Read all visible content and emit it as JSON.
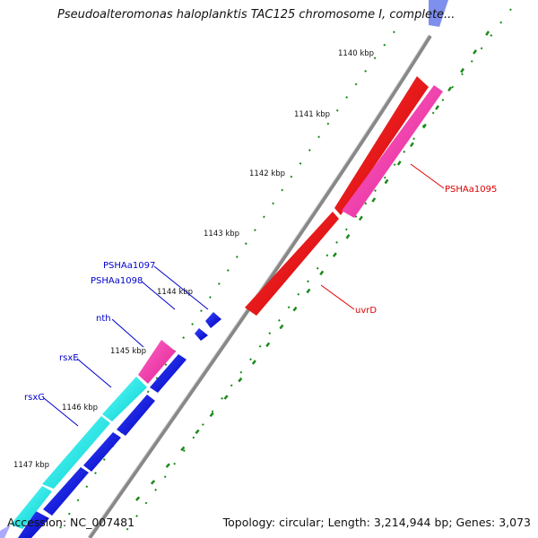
{
  "header": {
    "title": "Pseudoalteromonas haloplanktis TAC125 chromosome I, complete..."
  },
  "footer": {
    "accession": "Accession: NC_007481",
    "summary": "Topology: circular; Length: 3,214,944 bp; Genes: 3,073"
  },
  "ticks": [
    {
      "label": "1140 kbp"
    },
    {
      "label": "1141 kbp"
    },
    {
      "label": "1142 kbp"
    },
    {
      "label": "1143 kbp"
    },
    {
      "label": "1144 kbp"
    },
    {
      "label": "1145 kbp"
    },
    {
      "label": "1146 kbp"
    },
    {
      "label": "1147 kbp"
    }
  ],
  "genes": [
    {
      "name": "PSHAa1095",
      "color": "#ff33aa"
    },
    {
      "name": "uvrD",
      "color": "#ee0000"
    },
    {
      "name": "PSHAa1097",
      "color": "#0000ee"
    },
    {
      "name": "PSHAa1098",
      "color": "#0000ee"
    },
    {
      "name": "nth",
      "color": "#0000ee"
    },
    {
      "name": "rsxE",
      "color": "#0000ee"
    },
    {
      "name": "rsxG",
      "color": "#0000ee"
    }
  ],
  "colors": {
    "backbone": "#888888",
    "tick": "#1a8a1a",
    "forward_cds": "#ee0000",
    "forward_cds_2": "#ff33aa",
    "reverse_cds": "#0000ee",
    "reverse_cds_2": "#00ffff",
    "label_red": "#dd0000",
    "label_blue": "#0000cc"
  }
}
